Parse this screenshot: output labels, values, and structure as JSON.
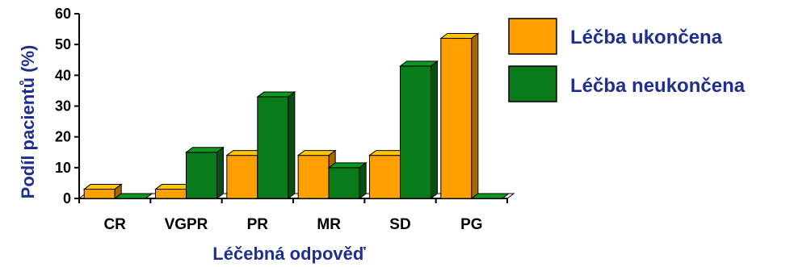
{
  "chart_data": {
    "type": "bar",
    "categories": [
      "CR",
      "VGPR",
      "PR",
      "MR",
      "SD",
      "PG"
    ],
    "series": [
      {
        "name": "Léčba ukončena",
        "values": [
          3,
          3,
          14,
          14,
          14,
          52
        ],
        "color": "#ff9f00"
      },
      {
        "name": "Léčba neukončena",
        "values": [
          0,
          15,
          33,
          10,
          43,
          0
        ],
        "color": "#0a7a1a"
      }
    ],
    "xlabel": "Léčebná odpověď",
    "ylabel": "Podíl pacientů (%)",
    "ylim": [
      0,
      60
    ],
    "yticks": [
      "0",
      "10",
      "20",
      "30",
      "40",
      "50",
      "60"
    ],
    "grid": false,
    "legend_position": "top-right",
    "style": "3d-bar"
  }
}
